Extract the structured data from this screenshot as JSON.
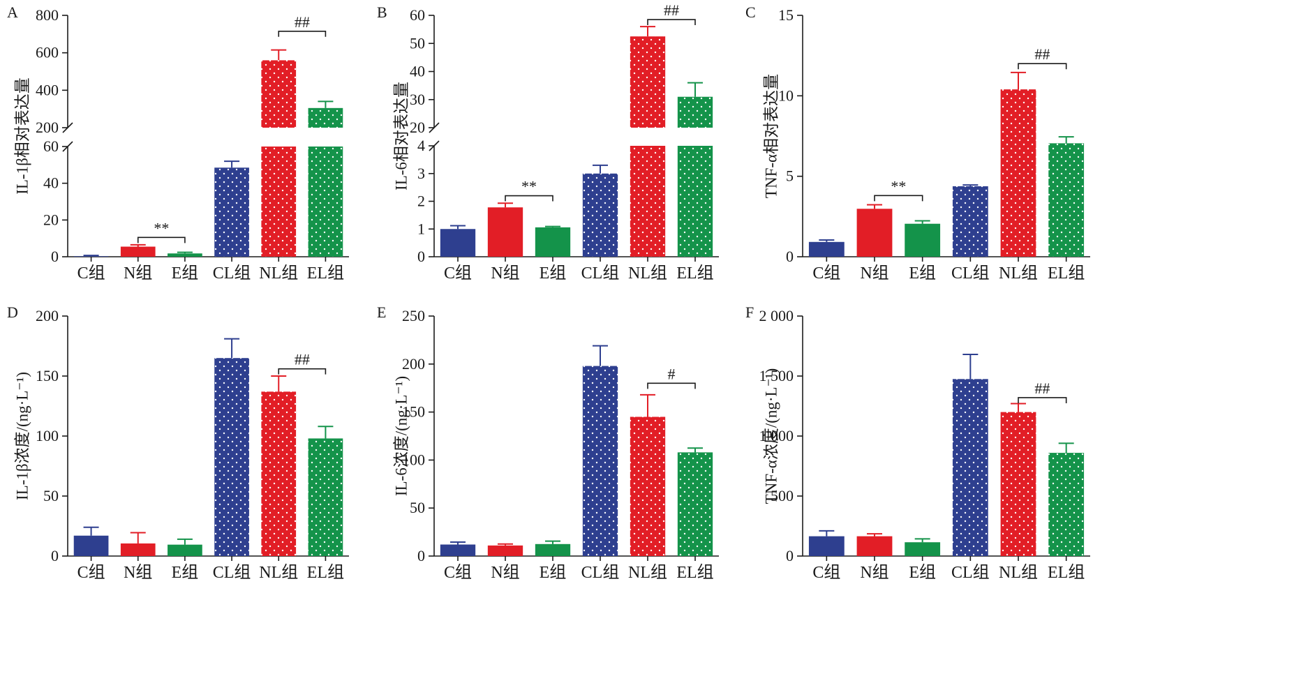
{
  "colors": {
    "C": "#2e3f8f",
    "N": "#e21e26",
    "E": "#14934a",
    "CL": "#2e3f8f",
    "NL": "#e21e26",
    "EL": "#14934a",
    "axis": "#1a1a1a"
  },
  "chart_data": [
    {
      "panel": "A",
      "type": "bar",
      "ylabel": "IL-1β相对表达量",
      "categories": [
        "C组",
        "N组",
        "E组",
        "CL组",
        "NL组",
        "EL组"
      ],
      "values": [
        0.3,
        5.5,
        1.8,
        48.5,
        560,
        305
      ],
      "errors": [
        0.4,
        1.0,
        0.6,
        3.5,
        55,
        35
      ],
      "patterned": [
        false,
        false,
        false,
        true,
        true,
        true
      ],
      "broken_axis": {
        "lower": {
          "ylim": [
            0,
            60
          ],
          "ticks": [
            "0",
            "20",
            "40",
            "60"
          ]
        },
        "upper": {
          "ylim": [
            200,
            800
          ],
          "ticks": [
            "200",
            "400",
            "600",
            "800"
          ]
        }
      },
      "annotations": [
        {
          "from": 1,
          "to": 2,
          "label": "**",
          "y": 10.5
        },
        {
          "from": 4,
          "to": 5,
          "label": "##",
          "y": 715
        }
      ]
    },
    {
      "panel": "B",
      "type": "bar",
      "ylabel": "IL-6相对表达量",
      "categories": [
        "C组",
        "N组",
        "E组",
        "CL组",
        "NL组",
        "EL组"
      ],
      "values": [
        1.0,
        1.78,
        1.06,
        3.0,
        52.5,
        31
      ],
      "errors": [
        0.12,
        0.15,
        0.03,
        0.3,
        3.5,
        5
      ],
      "patterned": [
        false,
        false,
        false,
        true,
        true,
        true
      ],
      "broken_axis": {
        "lower": {
          "ylim": [
            0,
            4
          ],
          "ticks": [
            "0",
            "1",
            "2",
            "3",
            "4"
          ]
        },
        "upper": {
          "ylim": [
            20,
            60
          ],
          "ticks": [
            "20",
            "30",
            "40",
            "50",
            "60"
          ]
        }
      },
      "annotations": [
        {
          "from": 1,
          "to": 2,
          "label": "**",
          "y": 2.2
        },
        {
          "from": 4,
          "to": 5,
          "label": "##",
          "y": 58.5
        }
      ]
    },
    {
      "panel": "C",
      "type": "bar",
      "ylabel": "TNF-α相对表达量",
      "categories": [
        "C组",
        "N组",
        "E组",
        "CL组",
        "NL组",
        "EL组"
      ],
      "values": [
        0.92,
        2.98,
        2.05,
        4.38,
        10.4,
        7.05
      ],
      "errors": [
        0.12,
        0.25,
        0.18,
        0.08,
        1.05,
        0.4
      ],
      "patterned": [
        false,
        false,
        false,
        true,
        true,
        true
      ],
      "ylim": [
        0,
        15
      ],
      "ticks": [
        "0",
        "5",
        "10",
        "15"
      ],
      "annotations": [
        {
          "from": 1,
          "to": 2,
          "label": "**",
          "y": 3.8
        },
        {
          "from": 4,
          "to": 5,
          "label": "##",
          "y": 12.0
        }
      ]
    },
    {
      "panel": "D",
      "type": "bar",
      "ylabel": "IL-1β浓度/(ng·L⁻¹)",
      "categories": [
        "C组",
        "N组",
        "E组",
        "CL组",
        "NL组",
        "EL组"
      ],
      "values": [
        17,
        10.5,
        9.5,
        165,
        137,
        98
      ],
      "errors": [
        7,
        9,
        4.5,
        16,
        13,
        10
      ],
      "patterned": [
        false,
        false,
        false,
        true,
        true,
        true
      ],
      "ylim": [
        0,
        200
      ],
      "ticks": [
        "0",
        "50",
        "100",
        "150",
        "200"
      ],
      "annotations": [
        {
          "from": 4,
          "to": 5,
          "label": "##",
          "y": 156
        }
      ]
    },
    {
      "panel": "E",
      "type": "bar",
      "ylabel": "IL-6浓度/(ng·L⁻¹)",
      "categories": [
        "C组",
        "N组",
        "E组",
        "CL组",
        "NL组",
        "EL组"
      ],
      "values": [
        12,
        11,
        12.5,
        198,
        145,
        108
      ],
      "errors": [
        2.5,
        1.5,
        3,
        21,
        23,
        4.5
      ],
      "patterned": [
        false,
        false,
        false,
        true,
        true,
        true
      ],
      "ylim": [
        0,
        250
      ],
      "ticks": [
        "0",
        "50",
        "100",
        "150",
        "200",
        "250"
      ],
      "annotations": [
        {
          "from": 4,
          "to": 5,
          "label": "#",
          "y": 180
        }
      ]
    },
    {
      "panel": "F",
      "type": "bar",
      "ylabel": "TNF-α浓度/(ng·L⁻¹)",
      "categories": [
        "C组",
        "N组",
        "E组",
        "CL组",
        "NL组",
        "EL组"
      ],
      "values": [
        165,
        165,
        115,
        1475,
        1200,
        860
      ],
      "errors": [
        45,
        20,
        28,
        205,
        70,
        80
      ],
      "patterned": [
        false,
        false,
        false,
        true,
        true,
        true
      ],
      "ylim": [
        0,
        2000
      ],
      "ticks": [
        "0",
        "500",
        "1 000",
        "1 500",
        "2 000"
      ],
      "annotations": [
        {
          "from": 4,
          "to": 5,
          "label": "##",
          "y": 1320
        }
      ]
    }
  ]
}
